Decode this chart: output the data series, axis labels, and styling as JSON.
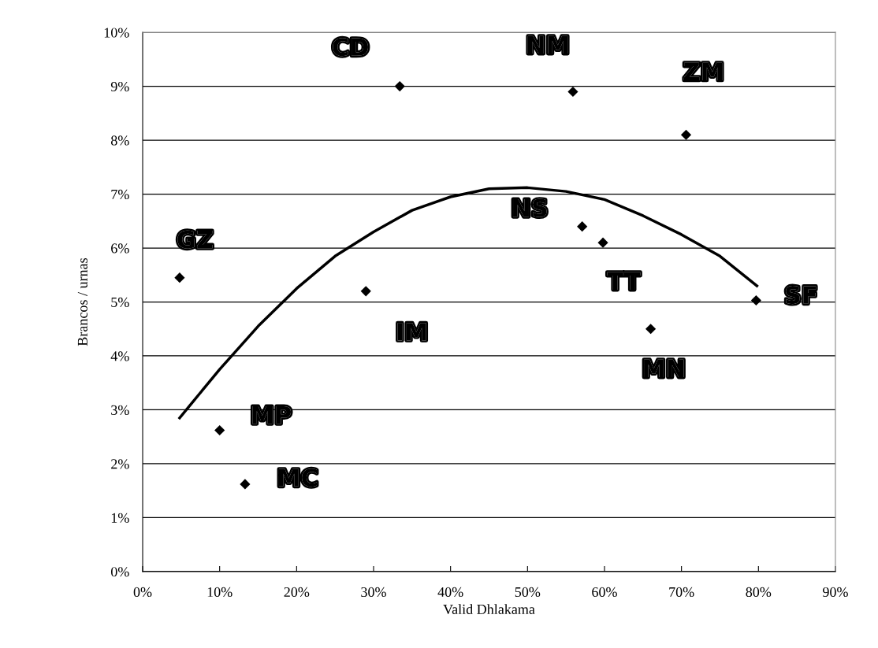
{
  "chart_data": {
    "type": "scatter",
    "xlabel": "Valid Dhlakama",
    "ylabel": "Brancos / urnas",
    "xlim": [
      0,
      90
    ],
    "ylim": [
      0,
      10
    ],
    "grid": "y",
    "marker": "diamond",
    "xticks": [
      {
        "value": 0,
        "label": "0%"
      },
      {
        "value": 10,
        "label": "10%"
      },
      {
        "value": 20,
        "label": "20%"
      },
      {
        "value": 30,
        "label": "30%"
      },
      {
        "value": 40,
        "label": "40%"
      },
      {
        "value": 50,
        "label": "50%"
      },
      {
        "value": 60,
        "label": "60%"
      },
      {
        "value": 70,
        "label": "70%"
      },
      {
        "value": 80,
        "label": "80%"
      },
      {
        "value": 90,
        "label": "90%"
      }
    ],
    "yticks": [
      {
        "value": 0,
        "label": "0%"
      },
      {
        "value": 1,
        "label": "1%"
      },
      {
        "value": 2,
        "label": "2%"
      },
      {
        "value": 3,
        "label": "3%"
      },
      {
        "value": 4,
        "label": "4%"
      },
      {
        "value": 5,
        "label": "5%"
      },
      {
        "value": 6,
        "label": "6%"
      },
      {
        "value": 7,
        "label": "7%"
      },
      {
        "value": 8,
        "label": "8%"
      },
      {
        "value": 9,
        "label": "9%"
      },
      {
        "value": 10,
        "label": "10%"
      }
    ],
    "series": [
      {
        "color": "#000000",
        "x": [
          4.8,
          33.4,
          55.9,
          70.6,
          57.1,
          59.8,
          79.7,
          29.0,
          66.0,
          10.0,
          13.3
        ],
        "values": [
          5.45,
          9.0,
          8.9,
          8.1,
          6.4,
          6.1,
          5.03,
          5.2,
          4.5,
          2.62,
          1.62
        ]
      },
      {
        "type": "line",
        "color": "#000000",
        "marker": "none",
        "x": [
          4.8,
          10,
          15,
          20,
          25,
          30,
          35,
          40,
          45,
          50,
          55,
          60,
          65,
          70,
          75,
          79.8
        ],
        "values": [
          2.85,
          3.75,
          4.55,
          5.25,
          5.85,
          6.3,
          6.7,
          6.95,
          7.1,
          7.12,
          7.05,
          6.9,
          6.6,
          6.25,
          5.85,
          5.3
        ]
      }
    ],
    "annotations": [
      {
        "text": "GZ",
        "x": 4.8,
        "y": 5.45
      },
      {
        "text": "CD",
        "x": 33.4,
        "y": 9.0
      },
      {
        "text": "NM",
        "x": 55.9,
        "y": 8.9
      },
      {
        "text": "ZM",
        "x": 70.6,
        "y": 8.1
      },
      {
        "text": "NS",
        "x": 57.1,
        "y": 6.4
      },
      {
        "text": "TT",
        "x": 59.8,
        "y": 6.1
      },
      {
        "text": "SF",
        "x": 79.7,
        "y": 5.03
      },
      {
        "text": "IM",
        "x": 29.0,
        "y": 5.2
      },
      {
        "text": "MN",
        "x": 66.0,
        "y": 4.5
      },
      {
        "text": "MP",
        "x": 10.0,
        "y": 2.62
      },
      {
        "text": "MC",
        "x": 13.3,
        "y": 1.62
      }
    ]
  }
}
